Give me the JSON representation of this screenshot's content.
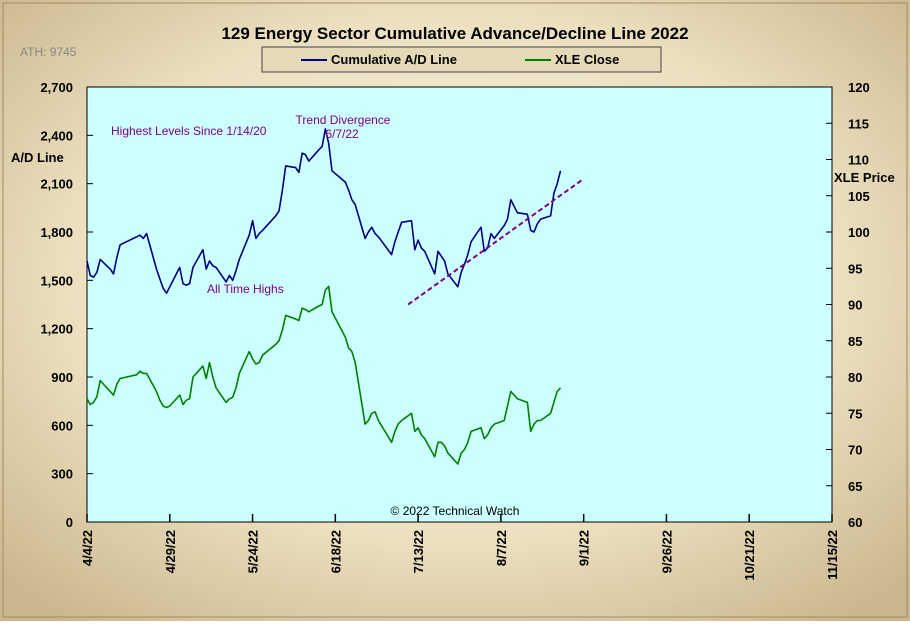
{
  "chart_data": {
    "type": "line",
    "title": "129 Energy Sector Cumulative Advance/Decline Line 2022",
    "ath_label": "ATH: 9745",
    "copyright": "© 2022 Technical Watch",
    "left_axis": {
      "label": "A/D Line",
      "range": [
        0,
        2700
      ],
      "ticks": [
        "0",
        "300",
        "600",
        "900",
        "1,200",
        "1,500",
        "1,800",
        "2,100",
        "2,400",
        "2,700"
      ]
    },
    "right_axis": {
      "label": "XLE Price",
      "range": [
        60,
        120
      ],
      "ticks": [
        "60",
        "65",
        "70",
        "75",
        "80",
        "85",
        "90",
        "95",
        "100",
        "105",
        "110",
        "115",
        "120"
      ]
    },
    "x_axis": {
      "range": [
        "2022-04-04",
        "2022-11-15"
      ],
      "ticks": [
        "4/4/22",
        "4/29/22",
        "5/24/22",
        "6/18/22",
        "7/13/22",
        "8/7/22",
        "9/1/22",
        "9/26/22",
        "10/21/22",
        "11/15/22"
      ]
    },
    "legend": {
      "placement": "top-center",
      "items": [
        {
          "label": "Cumulative A/D Line",
          "color": "#000080"
        },
        {
          "label": "XLE Close",
          "color": "#008000"
        }
      ]
    },
    "grid": false,
    "plot_background": "#ccffff",
    "series": [
      {
        "name": "Cumulative A/D Line",
        "axis": "left",
        "color": "#000080",
        "points": [
          [
            "2022-04-04",
            1620
          ],
          [
            "2022-04-05",
            1530
          ],
          [
            "2022-04-06",
            1520
          ],
          [
            "2022-04-07",
            1550
          ],
          [
            "2022-04-08",
            1630
          ],
          [
            "2022-04-11",
            1570
          ],
          [
            "2022-04-12",
            1540
          ],
          [
            "2022-04-13",
            1640
          ],
          [
            "2022-04-14",
            1720
          ],
          [
            "2022-04-18",
            1760
          ],
          [
            "2022-04-19",
            1770
          ],
          [
            "2022-04-20",
            1780
          ],
          [
            "2022-04-21",
            1760
          ],
          [
            "2022-04-22",
            1790
          ],
          [
            "2022-04-25",
            1570
          ],
          [
            "2022-04-26",
            1510
          ],
          [
            "2022-04-27",
            1450
          ],
          [
            "2022-04-28",
            1420
          ],
          [
            "2022-04-29",
            1460
          ],
          [
            "2022-05-02",
            1580
          ],
          [
            "2022-05-03",
            1480
          ],
          [
            "2022-05-04",
            1470
          ],
          [
            "2022-05-05",
            1480
          ],
          [
            "2022-05-06",
            1580
          ],
          [
            "2022-05-09",
            1690
          ],
          [
            "2022-05-10",
            1570
          ],
          [
            "2022-05-11",
            1620
          ],
          [
            "2022-05-12",
            1590
          ],
          [
            "2022-05-13",
            1580
          ],
          [
            "2022-05-16",
            1490
          ],
          [
            "2022-05-17",
            1530
          ],
          [
            "2022-05-18",
            1500
          ],
          [
            "2022-05-19",
            1560
          ],
          [
            "2022-05-20",
            1630
          ],
          [
            "2022-05-23",
            1780
          ],
          [
            "2022-05-24",
            1870
          ],
          [
            "2022-05-25",
            1760
          ],
          [
            "2022-05-26",
            1790
          ],
          [
            "2022-05-27",
            1810
          ],
          [
            "2022-05-31",
            1900
          ],
          [
            "2022-06-01",
            1930
          ],
          [
            "2022-06-02",
            2060
          ],
          [
            "2022-06-03",
            2210
          ],
          [
            "2022-06-06",
            2200
          ],
          [
            "2022-06-07",
            2170
          ],
          [
            "2022-06-08",
            2290
          ],
          [
            "2022-06-09",
            2280
          ],
          [
            "2022-06-10",
            2240
          ],
          [
            "2022-06-13",
            2310
          ],
          [
            "2022-06-14",
            2330
          ],
          [
            "2022-06-15",
            2440
          ],
          [
            "2022-06-16",
            2350
          ],
          [
            "2022-06-17",
            2180
          ],
          [
            "2022-06-21",
            2110
          ],
          [
            "2022-06-22",
            2060
          ],
          [
            "2022-06-23",
            2000
          ],
          [
            "2022-06-24",
            1970
          ],
          [
            "2022-06-27",
            1760
          ],
          [
            "2022-06-28",
            1800
          ],
          [
            "2022-06-29",
            1830
          ],
          [
            "2022-06-30",
            1790
          ],
          [
            "2022-07-01",
            1770
          ],
          [
            "2022-07-05",
            1660
          ],
          [
            "2022-07-06",
            1740
          ],
          [
            "2022-07-07",
            1800
          ],
          [
            "2022-07-08",
            1860
          ],
          [
            "2022-07-11",
            1870
          ],
          [
            "2022-07-12",
            1690
          ],
          [
            "2022-07-13",
            1750
          ],
          [
            "2022-07-14",
            1700
          ],
          [
            "2022-07-15",
            1680
          ],
          [
            "2022-07-18",
            1540
          ],
          [
            "2022-07-19",
            1680
          ],
          [
            "2022-07-20",
            1650
          ],
          [
            "2022-07-21",
            1620
          ],
          [
            "2022-07-22",
            1540
          ],
          [
            "2022-07-25",
            1460
          ],
          [
            "2022-07-26",
            1550
          ],
          [
            "2022-07-27",
            1600
          ],
          [
            "2022-07-28",
            1660
          ],
          [
            "2022-07-29",
            1740
          ],
          [
            "2022-08-01",
            1830
          ],
          [
            "2022-08-02",
            1680
          ],
          [
            "2022-08-03",
            1700
          ],
          [
            "2022-08-04",
            1790
          ],
          [
            "2022-08-05",
            1760
          ],
          [
            "2022-08-08",
            1840
          ],
          [
            "2022-08-09",
            1880
          ],
          [
            "2022-08-10",
            2000
          ],
          [
            "2022-08-11",
            1960
          ],
          [
            "2022-08-12",
            1920
          ],
          [
            "2022-08-15",
            1910
          ],
          [
            "2022-08-16",
            1810
          ],
          [
            "2022-08-17",
            1800
          ],
          [
            "2022-08-18",
            1850
          ],
          [
            "2022-08-19",
            1880
          ],
          [
            "2022-08-22",
            1900
          ],
          [
            "2022-08-23",
            2040
          ],
          [
            "2022-08-24",
            2100
          ],
          [
            "2022-08-25",
            2180
          ]
        ]
      },
      {
        "name": "XLE Close",
        "axis": "right",
        "color": "#008000",
        "points": [
          [
            "2022-04-04",
            77.0
          ],
          [
            "2022-04-05",
            76.2
          ],
          [
            "2022-04-06",
            76.5
          ],
          [
            "2022-04-07",
            77.3
          ],
          [
            "2022-04-08",
            79.5
          ],
          [
            "2022-04-11",
            78.0
          ],
          [
            "2022-04-12",
            77.5
          ],
          [
            "2022-04-13",
            79.0
          ],
          [
            "2022-04-14",
            79.8
          ],
          [
            "2022-04-18",
            80.2
          ],
          [
            "2022-04-19",
            80.3
          ],
          [
            "2022-04-20",
            80.8
          ],
          [
            "2022-04-21",
            80.5
          ],
          [
            "2022-04-22",
            80.5
          ],
          [
            "2022-04-25",
            78.0
          ],
          [
            "2022-04-26",
            76.8
          ],
          [
            "2022-04-27",
            76.0
          ],
          [
            "2022-04-28",
            75.8
          ],
          [
            "2022-04-29",
            76.0
          ],
          [
            "2022-05-02",
            77.5
          ],
          [
            "2022-05-03",
            76.2
          ],
          [
            "2022-05-04",
            76.8
          ],
          [
            "2022-05-05",
            77.0
          ],
          [
            "2022-05-06",
            80.0
          ],
          [
            "2022-05-09",
            81.5
          ],
          [
            "2022-05-10",
            79.8
          ],
          [
            "2022-05-11",
            82.0
          ],
          [
            "2022-05-12",
            80.0
          ],
          [
            "2022-05-13",
            78.5
          ],
          [
            "2022-05-16",
            76.5
          ],
          [
            "2022-05-17",
            77.0
          ],
          [
            "2022-05-18",
            77.2
          ],
          [
            "2022-05-19",
            78.5
          ],
          [
            "2022-05-20",
            80.5
          ],
          [
            "2022-05-23",
            83.5
          ],
          [
            "2022-05-24",
            82.5
          ],
          [
            "2022-05-25",
            81.8
          ],
          [
            "2022-05-26",
            82.0
          ],
          [
            "2022-05-27",
            83.0
          ],
          [
            "2022-05-31",
            84.5
          ],
          [
            "2022-06-01",
            85.0
          ],
          [
            "2022-06-02",
            86.5
          ],
          [
            "2022-06-03",
            88.5
          ],
          [
            "2022-06-06",
            88.0
          ],
          [
            "2022-06-07",
            87.8
          ],
          [
            "2022-06-08",
            89.5
          ],
          [
            "2022-06-09",
            89.3
          ],
          [
            "2022-06-10",
            89.0
          ],
          [
            "2022-06-13",
            89.8
          ],
          [
            "2022-06-14",
            90.0
          ],
          [
            "2022-06-15",
            92.0
          ],
          [
            "2022-06-16",
            92.5
          ],
          [
            "2022-06-17",
            89.0
          ],
          [
            "2022-06-21",
            85.5
          ],
          [
            "2022-06-22",
            84.0
          ],
          [
            "2022-06-23",
            83.5
          ],
          [
            "2022-06-24",
            82.0
          ],
          [
            "2022-06-27",
            73.5
          ],
          [
            "2022-06-28",
            74.0
          ],
          [
            "2022-06-29",
            75.0
          ],
          [
            "2022-06-30",
            75.2
          ],
          [
            "2022-07-01",
            74.0
          ],
          [
            "2022-07-05",
            71.0
          ],
          [
            "2022-07-06",
            72.5
          ],
          [
            "2022-07-07",
            73.5
          ],
          [
            "2022-07-08",
            74.0
          ],
          [
            "2022-07-11",
            75.0
          ],
          [
            "2022-07-12",
            72.5
          ],
          [
            "2022-07-13",
            73.0
          ],
          [
            "2022-07-14",
            72.0
          ],
          [
            "2022-07-15",
            71.5
          ],
          [
            "2022-07-18",
            69.0
          ],
          [
            "2022-07-19",
            71.0
          ],
          [
            "2022-07-20",
            71.0
          ],
          [
            "2022-07-21",
            70.5
          ],
          [
            "2022-07-22",
            69.5
          ],
          [
            "2022-07-25",
            68.0
          ],
          [
            "2022-07-26",
            69.5
          ],
          [
            "2022-07-27",
            70.0
          ],
          [
            "2022-07-28",
            71.0
          ],
          [
            "2022-07-29",
            72.5
          ],
          [
            "2022-08-01",
            73.0
          ],
          [
            "2022-08-02",
            71.5
          ],
          [
            "2022-08-03",
            72.0
          ],
          [
            "2022-08-04",
            73.0
          ],
          [
            "2022-08-05",
            73.5
          ],
          [
            "2022-08-08",
            74.0
          ],
          [
            "2022-08-09",
            76.0
          ],
          [
            "2022-08-10",
            78.0
          ],
          [
            "2022-08-11",
            77.5
          ],
          [
            "2022-08-12",
            77.0
          ],
          [
            "2022-08-15",
            76.5
          ],
          [
            "2022-08-16",
            72.5
          ],
          [
            "2022-08-17",
            73.5
          ],
          [
            "2022-08-18",
            74.0
          ],
          [
            "2022-08-19",
            74.0
          ],
          [
            "2022-08-22",
            75.0
          ],
          [
            "2022-08-23",
            76.5
          ],
          [
            "2022-08-24",
            78.0
          ],
          [
            "2022-08-25",
            78.5
          ]
        ]
      }
    ],
    "trendline": {
      "style": "dashed",
      "color": "#800080",
      "axis": "left",
      "points": [
        [
          "2022-07-10",
          1350
        ],
        [
          "2022-09-01",
          2130
        ]
      ]
    },
    "annotations": [
      {
        "text": "Highest Levels  Since 1/14/20",
        "color": "#800080"
      },
      {
        "text": "Trend  Divergence",
        "color": "#800080"
      },
      {
        "text": "6/7/22",
        "color": "#800080"
      },
      {
        "text": "All Time Highs",
        "color": "#800080"
      }
    ]
  }
}
